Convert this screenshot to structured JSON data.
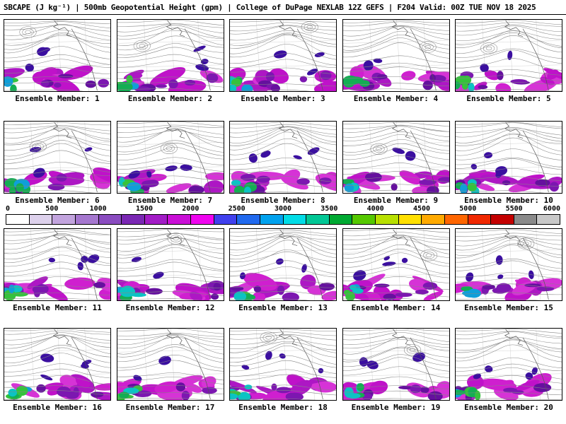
{
  "header": {
    "title": "SBCAPE (J kg⁻¹) | 500mb Geopotential Height (gpm) | College of DuPage NEXLAB 12Z GEFS | F204 Valid: 00Z TUE NOV 18 2025"
  },
  "panels": [
    {
      "label": "Ensemble Member: 1"
    },
    {
      "label": "Ensemble Member: 2"
    },
    {
      "label": "Ensemble Member: 3"
    },
    {
      "label": "Ensemble Member: 4"
    },
    {
      "label": "Ensemble Member: 5"
    },
    {
      "label": "Ensemble Member: 6"
    },
    {
      "label": "Ensemble Member: 7"
    },
    {
      "label": "Ensemble Member: 8"
    },
    {
      "label": "Ensemble Member: 9"
    },
    {
      "label": "Ensemble Member: 10"
    },
    {
      "label": "Ensemble Member: 11"
    },
    {
      "label": "Ensemble Member: 12"
    },
    {
      "label": "Ensemble Member: 13"
    },
    {
      "label": "Ensemble Member: 14"
    },
    {
      "label": "Ensemble Member: 15"
    },
    {
      "label": "Ensemble Member: 16"
    },
    {
      "label": "Ensemble Member: 17"
    },
    {
      "label": "Ensemble Member: 18"
    },
    {
      "label": "Ensemble Member: 19"
    },
    {
      "label": "Ensemble Member: 20"
    }
  ],
  "colorbar": {
    "ticks": [
      "0",
      "500",
      "1000",
      "1500",
      "2000",
      "2500",
      "3000",
      "3500",
      "4000",
      "4500",
      "5000",
      "5500",
      "6000"
    ],
    "colors": [
      "#ffffff",
      "#ddd1ec",
      "#c2a4de",
      "#a577cf",
      "#8a4cc0",
      "#7a28b4",
      "#a21cc6",
      "#c90fd6",
      "#ef04ef",
      "#4040ee",
      "#2069ee",
      "#00a2ee",
      "#00dce6",
      "#00c795",
      "#00aa33",
      "#55c800",
      "#b8e000",
      "#ffe000",
      "#ffaa00",
      "#ff6600",
      "#f02800",
      "#c40000",
      "#8a8a8a",
      "#c8c8c8"
    ]
  },
  "chart_data": {
    "type": "heatmap",
    "title": "SBCAPE (J kg⁻¹) | 500mb Geopotential Height (gpm)",
    "source_text": "College of DuPage NEXLAB 12Z GEFS",
    "forecast_hour": "F204",
    "valid_time": "00Z TUE NOV 18 2025",
    "layout": "5 columns x 4 rows of ensemble map panels with shared horizontal colorbar between rows 2 and 3",
    "panels": [
      "Ensemble Member: 1",
      "Ensemble Member: 2",
      "Ensemble Member: 3",
      "Ensemble Member: 4",
      "Ensemble Member: 5",
      "Ensemble Member: 6",
      "Ensemble Member: 7",
      "Ensemble Member: 8",
      "Ensemble Member: 9",
      "Ensemble Member: 10",
      "Ensemble Member: 11",
      "Ensemble Member: 12",
      "Ensemble Member: 13",
      "Ensemble Member: 14",
      "Ensemble Member: 15",
      "Ensemble Member: 16",
      "Ensemble Member: 17",
      "Ensemble Member: 18",
      "Ensemble Member: 19",
      "Ensemble Member: 20"
    ],
    "colorbar_ticks": [
      0,
      500,
      1000,
      1500,
      2000,
      2500,
      3000,
      3500,
      4000,
      4500,
      5000,
      5500,
      6000
    ],
    "colorbar_step": 250,
    "colorbar_units": "J kg⁻¹",
    "overlay": "gray 500mb geopotential height contours with ridge over the eastern North Pacific",
    "fill_description": "SBCAPE shading mostly 250-1500 J/kg (purple/magenta band across the subtropics) with 2500-3500 J/kg (cyan/green) pockets in the lower-left of each panel"
  }
}
